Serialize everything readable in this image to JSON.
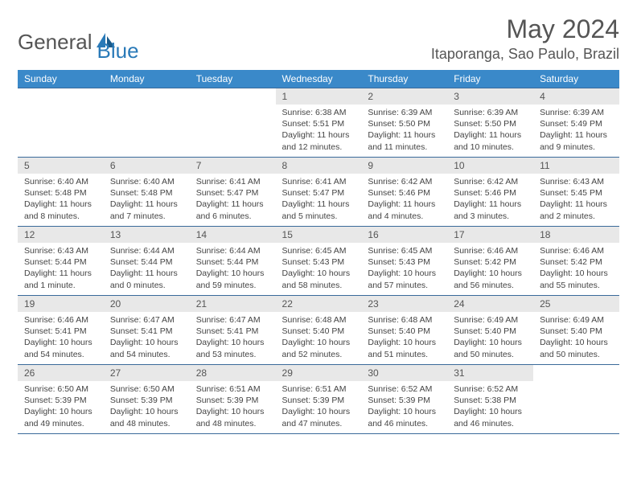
{
  "brand": {
    "name_part1": "General",
    "name_part2": "Blue"
  },
  "title": "May 2024",
  "location": "Itaporanga, Sao Paulo, Brazil",
  "colors": {
    "header_bg": "#3a89c9",
    "header_text": "#ffffff",
    "daynum_bg": "#e8e8e8",
    "border": "#3a6a9a",
    "text": "#444444",
    "brand_gray": "#555555",
    "brand_blue": "#2a7ab8"
  },
  "day_labels": [
    "Sunday",
    "Monday",
    "Tuesday",
    "Wednesday",
    "Thursday",
    "Friday",
    "Saturday"
  ],
  "weeks": [
    [
      {
        "empty": true
      },
      {
        "empty": true
      },
      {
        "empty": true
      },
      {
        "day": "1",
        "sunrise": "Sunrise: 6:38 AM",
        "sunset": "Sunset: 5:51 PM",
        "daylight": "Daylight: 11 hours and 12 minutes."
      },
      {
        "day": "2",
        "sunrise": "Sunrise: 6:39 AM",
        "sunset": "Sunset: 5:50 PM",
        "daylight": "Daylight: 11 hours and 11 minutes."
      },
      {
        "day": "3",
        "sunrise": "Sunrise: 6:39 AM",
        "sunset": "Sunset: 5:50 PM",
        "daylight": "Daylight: 11 hours and 10 minutes."
      },
      {
        "day": "4",
        "sunrise": "Sunrise: 6:39 AM",
        "sunset": "Sunset: 5:49 PM",
        "daylight": "Daylight: 11 hours and 9 minutes."
      }
    ],
    [
      {
        "day": "5",
        "sunrise": "Sunrise: 6:40 AM",
        "sunset": "Sunset: 5:48 PM",
        "daylight": "Daylight: 11 hours and 8 minutes."
      },
      {
        "day": "6",
        "sunrise": "Sunrise: 6:40 AM",
        "sunset": "Sunset: 5:48 PM",
        "daylight": "Daylight: 11 hours and 7 minutes."
      },
      {
        "day": "7",
        "sunrise": "Sunrise: 6:41 AM",
        "sunset": "Sunset: 5:47 PM",
        "daylight": "Daylight: 11 hours and 6 minutes."
      },
      {
        "day": "8",
        "sunrise": "Sunrise: 6:41 AM",
        "sunset": "Sunset: 5:47 PM",
        "daylight": "Daylight: 11 hours and 5 minutes."
      },
      {
        "day": "9",
        "sunrise": "Sunrise: 6:42 AM",
        "sunset": "Sunset: 5:46 PM",
        "daylight": "Daylight: 11 hours and 4 minutes."
      },
      {
        "day": "10",
        "sunrise": "Sunrise: 6:42 AM",
        "sunset": "Sunset: 5:46 PM",
        "daylight": "Daylight: 11 hours and 3 minutes."
      },
      {
        "day": "11",
        "sunrise": "Sunrise: 6:43 AM",
        "sunset": "Sunset: 5:45 PM",
        "daylight": "Daylight: 11 hours and 2 minutes."
      }
    ],
    [
      {
        "day": "12",
        "sunrise": "Sunrise: 6:43 AM",
        "sunset": "Sunset: 5:44 PM",
        "daylight": "Daylight: 11 hours and 1 minute."
      },
      {
        "day": "13",
        "sunrise": "Sunrise: 6:44 AM",
        "sunset": "Sunset: 5:44 PM",
        "daylight": "Daylight: 11 hours and 0 minutes."
      },
      {
        "day": "14",
        "sunrise": "Sunrise: 6:44 AM",
        "sunset": "Sunset: 5:44 PM",
        "daylight": "Daylight: 10 hours and 59 minutes."
      },
      {
        "day": "15",
        "sunrise": "Sunrise: 6:45 AM",
        "sunset": "Sunset: 5:43 PM",
        "daylight": "Daylight: 10 hours and 58 minutes."
      },
      {
        "day": "16",
        "sunrise": "Sunrise: 6:45 AM",
        "sunset": "Sunset: 5:43 PM",
        "daylight": "Daylight: 10 hours and 57 minutes."
      },
      {
        "day": "17",
        "sunrise": "Sunrise: 6:46 AM",
        "sunset": "Sunset: 5:42 PM",
        "daylight": "Daylight: 10 hours and 56 minutes."
      },
      {
        "day": "18",
        "sunrise": "Sunrise: 6:46 AM",
        "sunset": "Sunset: 5:42 PM",
        "daylight": "Daylight: 10 hours and 55 minutes."
      }
    ],
    [
      {
        "day": "19",
        "sunrise": "Sunrise: 6:46 AM",
        "sunset": "Sunset: 5:41 PM",
        "daylight": "Daylight: 10 hours and 54 minutes."
      },
      {
        "day": "20",
        "sunrise": "Sunrise: 6:47 AM",
        "sunset": "Sunset: 5:41 PM",
        "daylight": "Daylight: 10 hours and 54 minutes."
      },
      {
        "day": "21",
        "sunrise": "Sunrise: 6:47 AM",
        "sunset": "Sunset: 5:41 PM",
        "daylight": "Daylight: 10 hours and 53 minutes."
      },
      {
        "day": "22",
        "sunrise": "Sunrise: 6:48 AM",
        "sunset": "Sunset: 5:40 PM",
        "daylight": "Daylight: 10 hours and 52 minutes."
      },
      {
        "day": "23",
        "sunrise": "Sunrise: 6:48 AM",
        "sunset": "Sunset: 5:40 PM",
        "daylight": "Daylight: 10 hours and 51 minutes."
      },
      {
        "day": "24",
        "sunrise": "Sunrise: 6:49 AM",
        "sunset": "Sunset: 5:40 PM",
        "daylight": "Daylight: 10 hours and 50 minutes."
      },
      {
        "day": "25",
        "sunrise": "Sunrise: 6:49 AM",
        "sunset": "Sunset: 5:40 PM",
        "daylight": "Daylight: 10 hours and 50 minutes."
      }
    ],
    [
      {
        "day": "26",
        "sunrise": "Sunrise: 6:50 AM",
        "sunset": "Sunset: 5:39 PM",
        "daylight": "Daylight: 10 hours and 49 minutes."
      },
      {
        "day": "27",
        "sunrise": "Sunrise: 6:50 AM",
        "sunset": "Sunset: 5:39 PM",
        "daylight": "Daylight: 10 hours and 48 minutes."
      },
      {
        "day": "28",
        "sunrise": "Sunrise: 6:51 AM",
        "sunset": "Sunset: 5:39 PM",
        "daylight": "Daylight: 10 hours and 48 minutes."
      },
      {
        "day": "29",
        "sunrise": "Sunrise: 6:51 AM",
        "sunset": "Sunset: 5:39 PM",
        "daylight": "Daylight: 10 hours and 47 minutes."
      },
      {
        "day": "30",
        "sunrise": "Sunrise: 6:52 AM",
        "sunset": "Sunset: 5:39 PM",
        "daylight": "Daylight: 10 hours and 46 minutes."
      },
      {
        "day": "31",
        "sunrise": "Sunrise: 6:52 AM",
        "sunset": "Sunset: 5:38 PM",
        "daylight": "Daylight: 10 hours and 46 minutes."
      },
      {
        "empty": true
      }
    ]
  ]
}
